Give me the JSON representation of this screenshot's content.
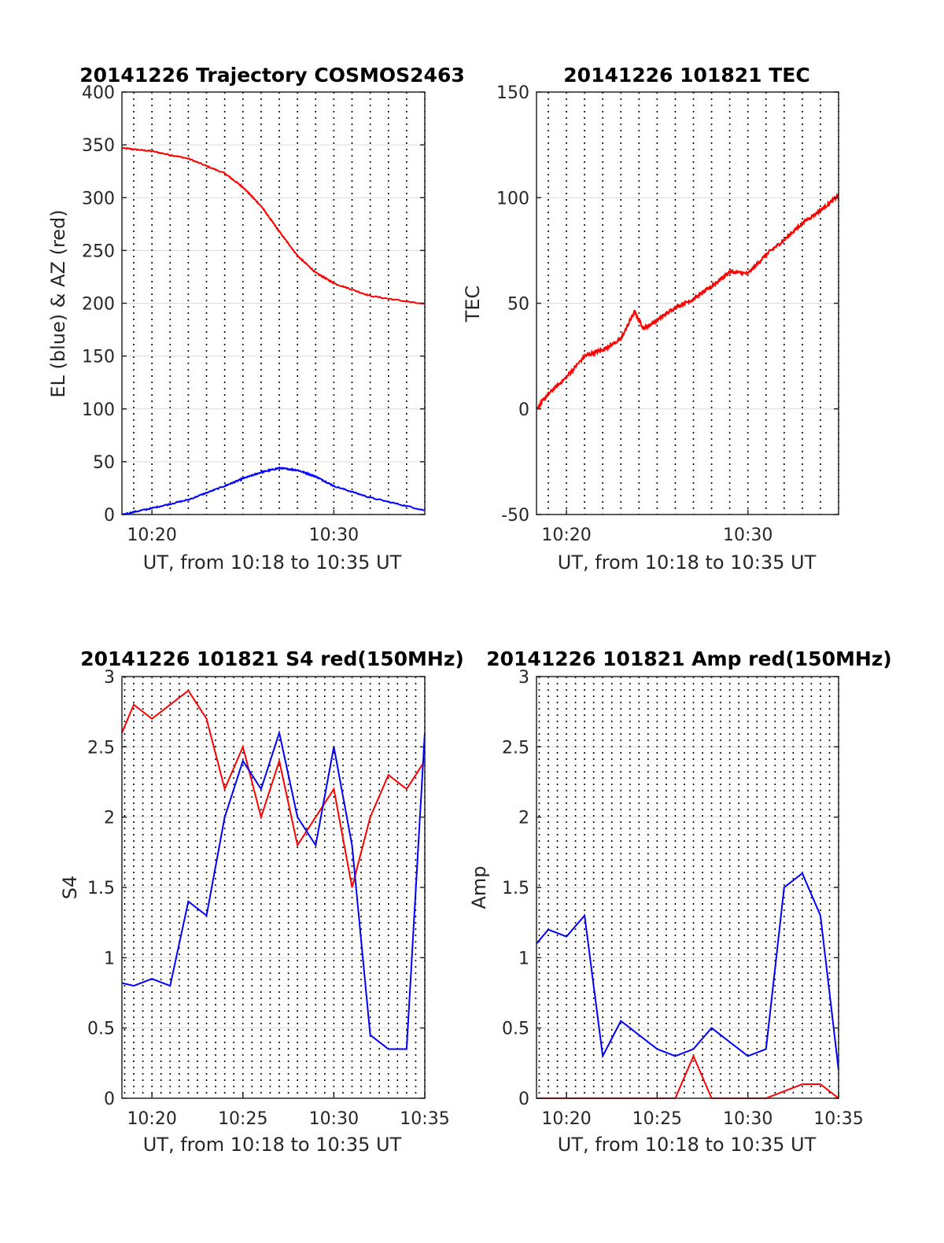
{
  "chart_data": [
    {
      "type": "line",
      "title": "20141226 Trajectory COSMOS2463",
      "xlabel": "UT, from 10:18 to 10:35 UT",
      "ylabel": "EL (blue) & AZ (red)",
      "xlim": [
        "10:18:21",
        "10:35:00"
      ],
      "ylim": [
        0,
        400
      ],
      "x_ticks": [
        "10:20",
        "10:30"
      ],
      "y_ticks": [
        "0",
        "50",
        "100",
        "150",
        "200",
        "250",
        "300",
        "350",
        "400"
      ],
      "grid": "dotted vertical lines every minute, light horizontal gridlines",
      "x": [
        "10:18:21",
        "10:20",
        "10:22",
        "10:24",
        "10:25",
        "10:26",
        "10:27",
        "10:28",
        "10:29",
        "10:30",
        "10:32",
        "10:35"
      ],
      "series": [
        {
          "color": "#ff0000",
          "values": [
            347,
            344,
            337,
            323,
            310,
            292,
            268,
            245,
            229,
            219,
            207,
            199
          ]
        },
        {
          "color": "#0000ff",
          "values": [
            0,
            6,
            14,
            27,
            34,
            40,
            44,
            42,
            36,
            27,
            16,
            4
          ]
        }
      ]
    },
    {
      "type": "line",
      "title": "20141226 101821 TEC",
      "xlabel": "UT, from 10:18 to 10:35 UT",
      "ylabel": "TEC",
      "xlim": [
        "10:18:21",
        "10:35:00"
      ],
      "ylim": [
        -50,
        150
      ],
      "x_ticks": [
        "10:20",
        "10:30"
      ],
      "y_ticks": [
        "-50",
        "0",
        "50",
        "100",
        "150"
      ],
      "grid": "dotted vertical lines every minute, light horizontal gridlines",
      "x": [
        "10:18:21",
        "10:19",
        "10:20",
        "10:21",
        "10:22",
        "10:23",
        "10:23:45",
        "10:24:15",
        "10:25",
        "10:26",
        "10:27",
        "10:28",
        "10:29",
        "10:30",
        "10:31",
        "10:32",
        "10:33",
        "10:34",
        "10:35"
      ],
      "series": [
        {
          "color": "#ff0000",
          "values": [
            0,
            7,
            15,
            25,
            28,
            33,
            46,
            38,
            42,
            48,
            52,
            58,
            65,
            64,
            73,
            80,
            88,
            94,
            101
          ]
        }
      ]
    },
    {
      "type": "line",
      "title": "20141226 101821 S4 red(150MHz)",
      "xlabel": "UT, from 10:18 to 10:35 UT",
      "ylabel": "S4",
      "xlim": [
        "10:18:21",
        "10:35:00"
      ],
      "ylim": [
        0,
        3
      ],
      "x_ticks": [
        "10:20",
        "10:25",
        "10:30",
        "10:35"
      ],
      "y_ticks": [
        "0",
        "0.5",
        "1",
        "1.5",
        "2",
        "2.5",
        "3"
      ],
      "grid": "dotted vertical lines every 30 s, light horizontal gridlines",
      "x": [
        "10:18:21",
        "10:19",
        "10:20",
        "10:21",
        "10:22",
        "10:23",
        "10:24",
        "10:25",
        "10:26",
        "10:27",
        "10:28",
        "10:29",
        "10:30",
        "10:31",
        "10:32",
        "10:33",
        "10:34",
        "10:35"
      ],
      "series": [
        {
          "color": "#ff0000",
          "values": [
            2.6,
            2.8,
            2.7,
            2.8,
            2.9,
            2.7,
            2.2,
            2.5,
            2.0,
            2.4,
            1.8,
            2.0,
            2.2,
            1.5,
            2.0,
            2.3,
            2.2,
            2.4
          ]
        },
        {
          "color": "#0000ff",
          "values": [
            0.82,
            0.8,
            0.85,
            0.8,
            1.4,
            1.3,
            2.0,
            2.4,
            2.2,
            2.6,
            2.0,
            1.8,
            2.5,
            1.8,
            0.45,
            0.35,
            0.35,
            2.6
          ]
        }
      ]
    },
    {
      "type": "line",
      "title": "20141226 101821 Amp red(150MHz)",
      "xlabel": "UT, from 10:18 to 10:35 UT",
      "ylabel": "Amp",
      "xlim": [
        "10:18:21",
        "10:35:00"
      ],
      "ylim": [
        0,
        3
      ],
      "x_ticks": [
        "10:20",
        "10:25",
        "10:30",
        "10:35"
      ],
      "y_ticks": [
        "0",
        "0.5",
        "1",
        "1.5",
        "2",
        "2.5",
        "3"
      ],
      "grid": "dotted vertical lines every 30 s, light horizontal gridlines",
      "x": [
        "10:18:21",
        "10:19",
        "10:20",
        "10:21",
        "10:22",
        "10:23",
        "10:24",
        "10:25",
        "10:26",
        "10:27",
        "10:28",
        "10:29",
        "10:30",
        "10:31",
        "10:32",
        "10:33",
        "10:34",
        "10:35"
      ],
      "series": [
        {
          "color": "#ff0000",
          "values": [
            0,
            0,
            0,
            0,
            0,
            0,
            0,
            0,
            0,
            0.3,
            0,
            0,
            0,
            0,
            0.05,
            0.1,
            0.1,
            0
          ]
        },
        {
          "color": "#0000ff",
          "values": [
            1.1,
            1.2,
            1.15,
            1.3,
            0.3,
            0.55,
            0.45,
            0.35,
            0.3,
            0.35,
            0.5,
            0.4,
            0.3,
            0.35,
            1.5,
            1.6,
            1.3,
            0.2
          ]
        }
      ]
    }
  ]
}
